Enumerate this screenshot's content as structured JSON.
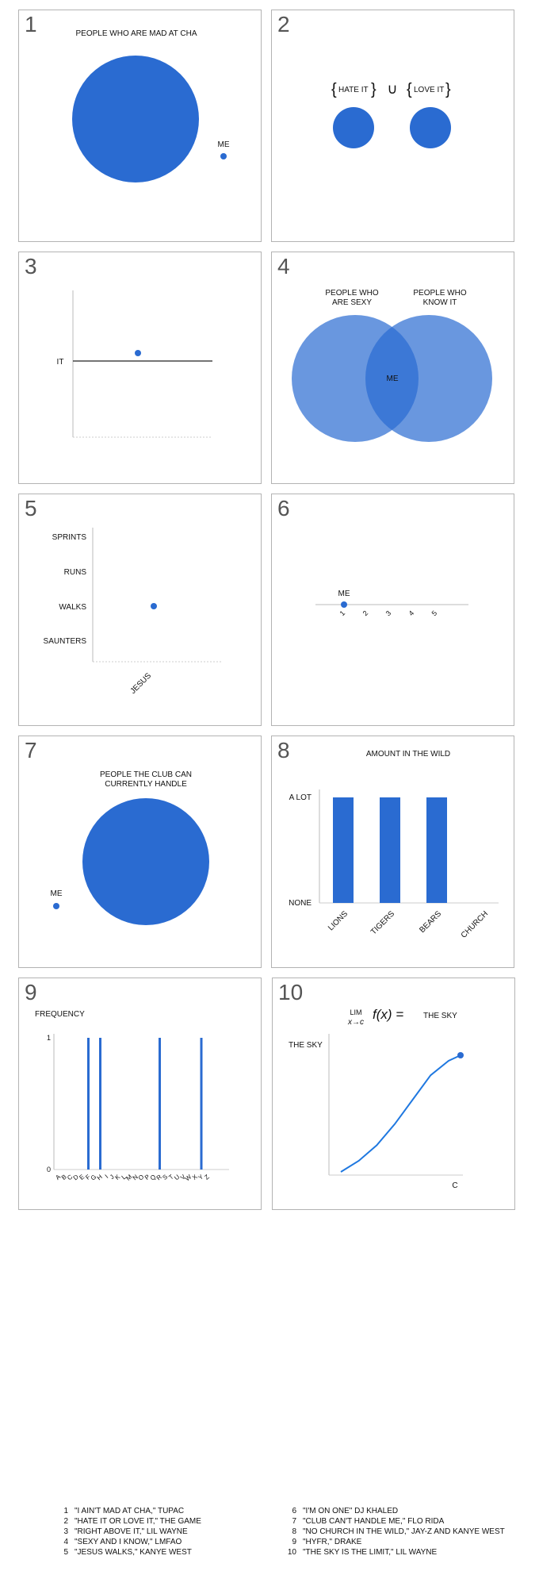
{
  "colors": {
    "blue": "#2a6bd1",
    "light_blue": "#4c86db",
    "axis": "#999999"
  },
  "panels": [
    {
      "number": "1",
      "title": "PEOPLE WHO ARE MAD AT CHA",
      "me": "ME"
    },
    {
      "number": "2",
      "left": "HATE IT",
      "right": "LOVE IT",
      "union": "∪"
    },
    {
      "number": "3",
      "ylabel": "IT"
    },
    {
      "number": "4",
      "left_top": "PEOPLE WHO",
      "left_bottom": "ARE SEXY",
      "right_top": "PEOPLE WHO",
      "right_bottom": "KNOW IT",
      "center": "ME"
    },
    {
      "number": "5"
    },
    {
      "number": "6",
      "me": "ME"
    },
    {
      "number": "7",
      "title_top": "PEOPLE THE CLUB CAN",
      "title_bottom": "CURRENTLY HANDLE",
      "me": "ME"
    },
    {
      "number": "8",
      "title": "AMOUNT IN THE WILD"
    },
    {
      "number": "9",
      "ylabel": "FREQUENCY"
    },
    {
      "number": "10",
      "lim": "LIM",
      "sub": "x→c",
      "fx": "f(x) =",
      "rhs": "THE SKY",
      "ylabel": "THE SKY",
      "xlabel": "C"
    }
  ],
  "chart_data": [
    {
      "type": "scatter",
      "panel": 1,
      "title": "PEOPLE WHO ARE MAD AT CHA",
      "series": [
        {
          "name": "PEOPLE WHO ARE MAD AT CHA",
          "relative_size": 1.0
        },
        {
          "name": "ME",
          "relative_size": 0.05
        }
      ]
    },
    {
      "type": "scatter",
      "panel": 2,
      "series": [
        {
          "name": "HATE IT"
        },
        {
          "name": "LOVE IT"
        }
      ]
    },
    {
      "type": "scatter",
      "panel": 3,
      "ylabel": "IT",
      "point": "above IT"
    },
    {
      "type": "scatter",
      "panel": 4,
      "series": [
        {
          "name": "PEOPLE WHO ARE SEXY"
        },
        {
          "name": "PEOPLE WHO KNOW IT"
        }
      ],
      "intersection": "ME"
    },
    {
      "type": "scatter",
      "panel": 5,
      "categories_y": [
        "SPRINTS",
        "RUNS",
        "WALKS",
        "SAUNTERS"
      ],
      "categories_x": [
        "JESUS"
      ],
      "point": {
        "x": "JESUS",
        "y": "WALKS"
      }
    },
    {
      "type": "scatter",
      "panel": 6,
      "x": [
        "1",
        "2",
        "3",
        "4",
        "5"
      ],
      "point": {
        "x": "1",
        "label": "ME"
      }
    },
    {
      "type": "scatter",
      "panel": 7,
      "title": "PEOPLE THE CLUB CAN CURRENTLY HANDLE",
      "series": [
        {
          "name": "PEOPLE THE CLUB CAN CURRENTLY HANDLE",
          "relative_size": 1.0
        },
        {
          "name": "ME",
          "relative_size": 0.05
        }
      ]
    },
    {
      "type": "bar",
      "panel": 8,
      "title": "AMOUNT IN THE WILD",
      "categories": [
        "LIONS",
        "TIGERS",
        "BEARS",
        "CHURCH"
      ],
      "values": [
        1,
        1,
        1,
        0
      ],
      "yticks": [
        "NONE",
        "A LOT"
      ],
      "ylim": [
        0,
        1
      ]
    },
    {
      "type": "bar",
      "panel": 9,
      "ylabel": "FREQUENCY",
      "categories": [
        "A",
        "B",
        "C",
        "D",
        "E",
        "F",
        "G",
        "H",
        "I",
        "J",
        "K",
        "L",
        "M",
        "N",
        "O",
        "P",
        "Q",
        "R",
        "S",
        "T",
        "U",
        "V",
        "W",
        "X",
        "Y",
        "Z"
      ],
      "values": [
        0,
        0,
        0,
        0,
        0,
        1,
        0,
        1,
        0,
        0,
        0,
        0,
        0,
        0,
        0,
        0,
        0,
        1,
        0,
        0,
        0,
        0,
        0,
        0,
        1,
        0
      ],
      "yticks": [
        "0",
        "1"
      ],
      "ylim": [
        0,
        1
      ]
    },
    {
      "type": "line",
      "panel": 10,
      "ylabel": "THE SKY",
      "xlabel": "C",
      "x": [
        0,
        0.15,
        0.3,
        0.45,
        0.6,
        0.75,
        0.9,
        1.0
      ],
      "y": [
        0,
        0.1,
        0.24,
        0.43,
        0.65,
        0.87,
        1.0,
        1.05
      ]
    }
  ],
  "footnotes": [
    {
      "n": "1",
      "text": "\"I AIN'T MAD AT CHA,\" TUPAC"
    },
    {
      "n": "2",
      "text": "\"HATE IT OR LOVE IT,\" THE GAME"
    },
    {
      "n": "3",
      "text": "\"RIGHT ABOVE IT,\" LIL WAYNE"
    },
    {
      "n": "4",
      "text": " \"SEXY AND I KNOW,\" LMFAO"
    },
    {
      "n": "5",
      "text": " \"JESUS WALKS,\" KANYE WEST"
    },
    {
      "n": "6",
      "text": "\"I'M ON ONE\" DJ KHALED"
    },
    {
      "n": "7",
      "text": "\"CLUB CAN'T HANDLE ME,\" FLO RIDA"
    },
    {
      "n": "8",
      "text": "\"NO CHURCH IN THE WILD,\" JAY-Z AND KANYE WEST"
    },
    {
      "n": "9",
      "text": "\"HYFR,\" DRAKE"
    },
    {
      "n": "10",
      "text": "\"THE SKY IS THE LIMIT,\" LIL WAYNE"
    }
  ]
}
